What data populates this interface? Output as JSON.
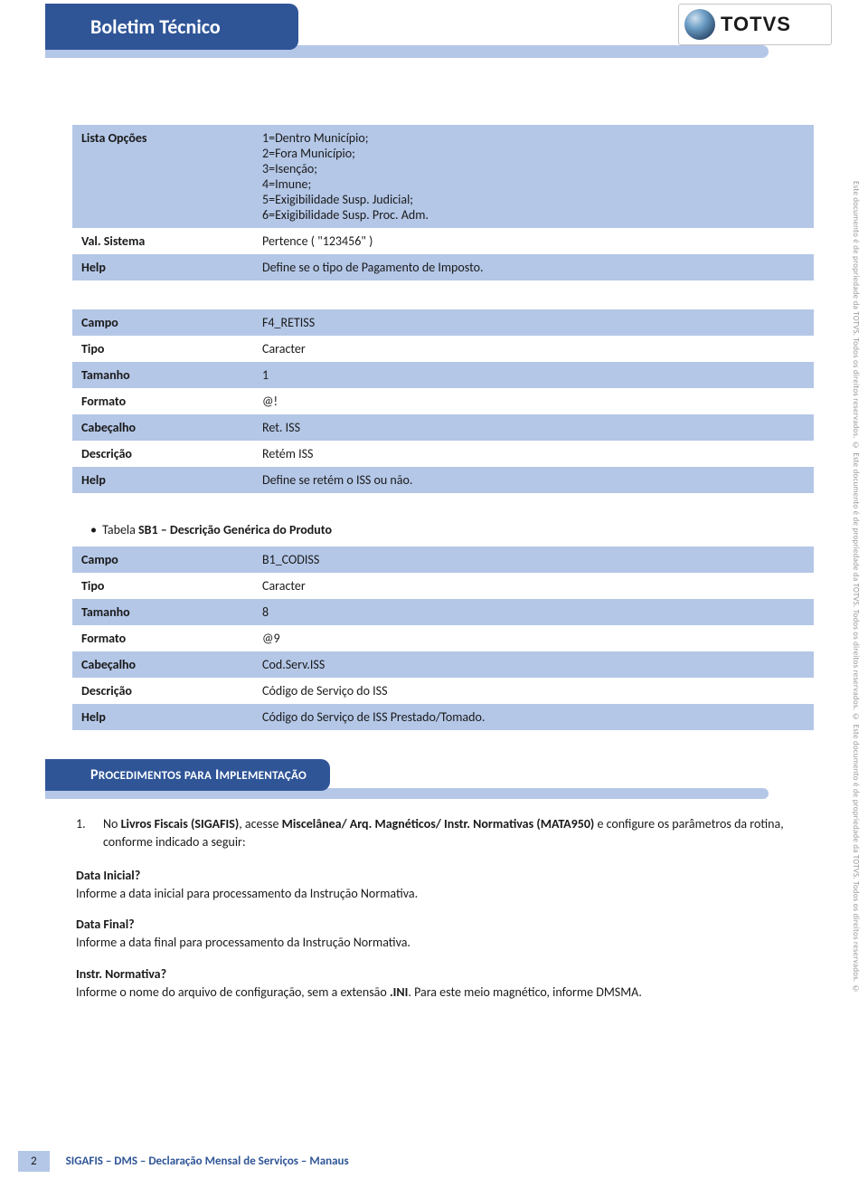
{
  "header": {
    "title": "Boletim Técnico",
    "logo_text": "TOTVS"
  },
  "table1": {
    "rows": [
      {
        "k": "Lista Opções",
        "v": "1=Dentro Município;\n2=Fora Município;\n3=Isenção;\n4=Imune;\n5=Exigibilidade Susp. Judicial;\n6=Exigibilidade Susp. Proc. Adm."
      },
      {
        "k": "Val. Sistema",
        "v": "Pertence ( \"123456\" )"
      },
      {
        "k": "Help",
        "v": "Define se o tipo de Pagamento de Imposto."
      }
    ]
  },
  "table2": {
    "rows": [
      {
        "k": "Campo",
        "v": "F4_RETISS"
      },
      {
        "k": "Tipo",
        "v": "Caracter"
      },
      {
        "k": "Tamanho",
        "v": "1"
      },
      {
        "k": "Formato",
        "v": "@!"
      },
      {
        "k": "Cabeçalho",
        "v": "Ret. ISS"
      },
      {
        "k": "Descrição",
        "v": "Retém ISS"
      },
      {
        "k": "Help",
        "v": "Define se retém o ISS ou não."
      }
    ]
  },
  "table3_caption": "Tabela SB1 – Descrição Genérica do Produto",
  "table3": {
    "rows": [
      {
        "k": "Campo",
        "v": "B1_CODISS"
      },
      {
        "k": "Tipo",
        "v": "Caracter"
      },
      {
        "k": "Tamanho",
        "v": "8"
      },
      {
        "k": "Formato",
        "v": "@9"
      },
      {
        "k": "Cabeçalho",
        "v": "Cod.Serv.ISS"
      },
      {
        "k": "Descrição",
        "v": "Código de Serviço do ISS"
      },
      {
        "k": "Help",
        "v": "Código do Serviço de ISS Prestado/Tomado."
      }
    ]
  },
  "section_heading": "Procedimentos para Implementação",
  "proc_item": {
    "num": "1.",
    "text_before": "No ",
    "bold1": "Livros Fiscais (SIGAFIS)",
    "text_mid1": ", acesse ",
    "bold2": "Miscelânea/ Arq. Magnéticos/ Instr. Normativas (MATA950)",
    "text_after": " e configure os parâmetros da rotina, conforme indicado a seguir:"
  },
  "qa1": {
    "q": "Data Inicial?",
    "a": "Informe a data inicial para processamento da Instrução Normativa."
  },
  "qa2": {
    "q": "Data Final?",
    "a": "Informe a data final para processamento da Instrução Normativa."
  },
  "qa3": {
    "q": "Instr. Normativa?",
    "a_before": "Informe o nome do arquivo de configuração, sem a extensão ",
    "a_bold": ".INI",
    "a_after": ". Para este meio magnético, informe DMSMA."
  },
  "footer": {
    "page": "2",
    "text": "SIGAFIS – DMS – Declaração Mensal de Serviços – Manaus"
  },
  "side_text": "Este documento é de propriedade da TOTVS. Todos os direitos reservados. ©    Este documento é de propriedade da TOTVS. Todos os direitos reservados. ©    Este documento é de propriedade da TOTVS. Todos os direitos reservados. ©",
  "colors": {
    "brand_blue": "#2f5597",
    "light_blue": "#b4c7e7",
    "text": "#1a1a1a"
  }
}
